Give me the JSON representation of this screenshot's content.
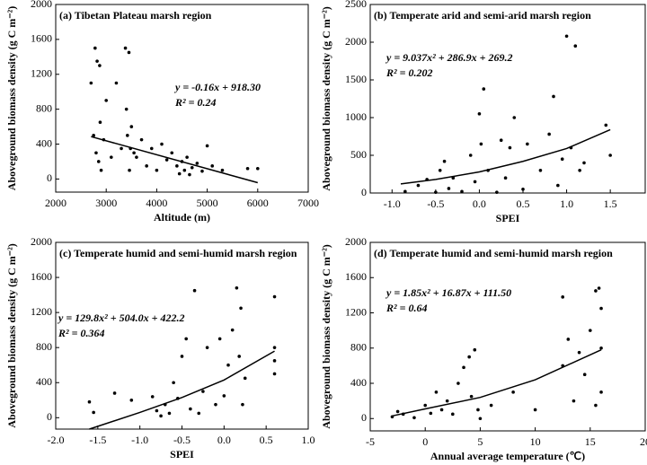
{
  "chart_data": [
    {
      "type": "scatter",
      "title": "(a) Tibetan Plateau marsh region",
      "x_label": "Altitude (m)",
      "y_label": "Aboveground biomass density (g C m⁻²)",
      "annotations": [
        "y = -0.16x + 918.30",
        "R² = 0.24"
      ],
      "color": "#000000",
      "xlim": [
        2000,
        7000
      ],
      "xticks": [
        2000,
        3000,
        4000,
        5000,
        6000,
        7000
      ],
      "ylim": [
        -150,
        2000
      ],
      "yticks": [
        0,
        400,
        800,
        1200,
        1600,
        2000
      ],
      "x": [
        2700,
        2750,
        2780,
        2800,
        2820,
        2850,
        2870,
        2880,
        2900,
        2950,
        3000,
        3100,
        3200,
        3300,
        3380,
        3400,
        3420,
        3450,
        3460,
        3480,
        3500,
        3550,
        3600,
        3700,
        3800,
        3900,
        4000,
        4100,
        4200,
        4300,
        4400,
        4450,
        4500,
        4550,
        4600,
        4650,
        4700,
        4800,
        4900,
        5000,
        5100,
        5300,
        5800,
        6000
      ],
      "values": [
        1100,
        500,
        1500,
        300,
        1350,
        200,
        1300,
        650,
        100,
        450,
        900,
        250,
        1100,
        350,
        1500,
        800,
        500,
        1450,
        100,
        350,
        600,
        300,
        250,
        450,
        150,
        350,
        100,
        400,
        220,
        300,
        150,
        60,
        200,
        100,
        250,
        50,
        130,
        180,
        90,
        380,
        150,
        100,
        120,
        120
      ],
      "fit": {
        "x": [
          2700,
          6000
        ],
        "values": [
          486,
          -42
        ]
      }
    },
    {
      "type": "scatter",
      "title": "(b) Temperate arid and semi-arid marsh region",
      "x_label": "SPEI",
      "y_label": "Aboveground biomass density (g C m⁻²)",
      "annotations": [
        "y = 9.037x² + 286.9x + 269.2",
        "R² = 0.202"
      ],
      "color": "#000000",
      "xlim": [
        -1.25,
        1.9
      ],
      "xticks": [
        {
          "value": -1,
          "label": "-1.0"
        },
        -0.5,
        {
          "value": 0,
          "label": "0.0"
        },
        0.5,
        {
          "value": 1,
          "label": "1.0"
        },
        1.5
      ],
      "ylim": [
        0,
        2500
      ],
      "yticks": [
        0,
        500,
        1000,
        1500,
        2000,
        2500
      ],
      "x": [
        -0.85,
        -0.7,
        -0.6,
        -0.5,
        -0.45,
        -0.4,
        -0.35,
        -0.3,
        -0.2,
        -0.1,
        -0.05,
        0,
        0.02,
        0.05,
        0.1,
        0.2,
        0.25,
        0.3,
        0.35,
        0.4,
        0.5,
        0.55,
        0.7,
        0.8,
        0.85,
        0.9,
        0.95,
        1,
        1.05,
        1.1,
        1.15,
        1.2,
        1.45,
        1.5
      ],
      "values": [
        20,
        100,
        180,
        10,
        300,
        420,
        60,
        200,
        20,
        500,
        150,
        1050,
        650,
        1380,
        300,
        10,
        700,
        200,
        600,
        1000,
        50,
        650,
        300,
        780,
        1280,
        100,
        450,
        2080,
        600,
        1950,
        300,
        400,
        900,
        500
      ],
      "fit": {
        "x": [
          -0.9,
          -0.5,
          0,
          0.5,
          1,
          1.5
        ],
        "values": [
          120,
          180,
          280,
          420,
          590,
          840
        ]
      }
    },
    {
      "type": "scatter",
      "title": "(c) Temperate  humid and semi-humid  marsh region",
      "x_label": "SPEI",
      "y_label": "Aboveground biomass density (g C m⁻²)",
      "annotations": [
        "y = 129.8x² + 504.0x + 422.2",
        "R² = 0.364"
      ],
      "color": "#000000",
      "xlim": [
        -2,
        1
      ],
      "xticks": [
        {
          "value": -2,
          "label": "-2.0"
        },
        -1.5,
        {
          "value": -1,
          "label": "-1.0"
        },
        -0.5,
        {
          "value": 0,
          "label": "0.0"
        },
        0.5,
        {
          "value": 1,
          "label": "1.0"
        }
      ],
      "ylim": [
        -130,
        2000
      ],
      "yticks": [
        0,
        400,
        800,
        1200,
        1600,
        2000
      ],
      "x": [
        -1.6,
        -1.55,
        -1.3,
        -1.1,
        -0.85,
        -0.8,
        -0.75,
        -0.7,
        -0.65,
        -0.6,
        -0.55,
        -0.5,
        -0.45,
        -0.4,
        -0.35,
        -0.3,
        -0.25,
        -0.2,
        -0.1,
        -0.05,
        0,
        0.05,
        0.1,
        0.15,
        0.18,
        0.2,
        0.22,
        0.25,
        0.6,
        0.6,
        0.6,
        0.6
      ],
      "values": [
        180,
        60,
        280,
        200,
        240,
        80,
        20,
        150,
        50,
        400,
        220,
        700,
        900,
        100,
        1450,
        50,
        300,
        800,
        150,
        900,
        250,
        600,
        1000,
        1480,
        700,
        1250,
        150,
        450,
        1380,
        800,
        500,
        650
      ],
      "fit": {
        "x": [
          -1.6,
          -1,
          -0.5,
          0,
          0.6
        ],
        "values": [
          -130,
          60,
          230,
          430,
          760
        ]
      }
    },
    {
      "type": "scatter",
      "title": "(d) Temperate humid and semi-humid  marsh region",
      "x_label": "Annual average temperature (℃)",
      "y_label": "Aboveground biomass density (g C m⁻²)",
      "annotations": [
        "y = 1.85x² + 16.87x + 111.50",
        "R² = 0.64"
      ],
      "color": "#000000",
      "xlim": [
        -5,
        20
      ],
      "xticks": [
        -5,
        0,
        5,
        10,
        15,
        20
      ],
      "ylim": [
        -140,
        2000
      ],
      "yticks": [
        0,
        400,
        800,
        1200,
        1600,
        2000
      ],
      "x": [
        -3,
        -2.5,
        -2,
        -1,
        0,
        0.5,
        1,
        1.5,
        2,
        2.5,
        3,
        3.5,
        4,
        4.2,
        4.5,
        4.8,
        5,
        6,
        8,
        10,
        12.5,
        12.5,
        13,
        13.5,
        14,
        14.5,
        15,
        15.5,
        15.8,
        16,
        16,
        16,
        15.5
      ],
      "values": [
        20,
        80,
        50,
        10,
        150,
        60,
        300,
        100,
        200,
        50,
        400,
        580,
        700,
        250,
        780,
        100,
        0,
        150,
        300,
        100,
        1380,
        600,
        900,
        200,
        750,
        500,
        1000,
        1450,
        1480,
        1250,
        800,
        300,
        150
      ],
      "fit": {
        "x": [
          -3,
          0,
          5,
          10,
          16
        ],
        "values": [
          30,
          110,
          240,
          440,
          780
        ]
      }
    }
  ]
}
